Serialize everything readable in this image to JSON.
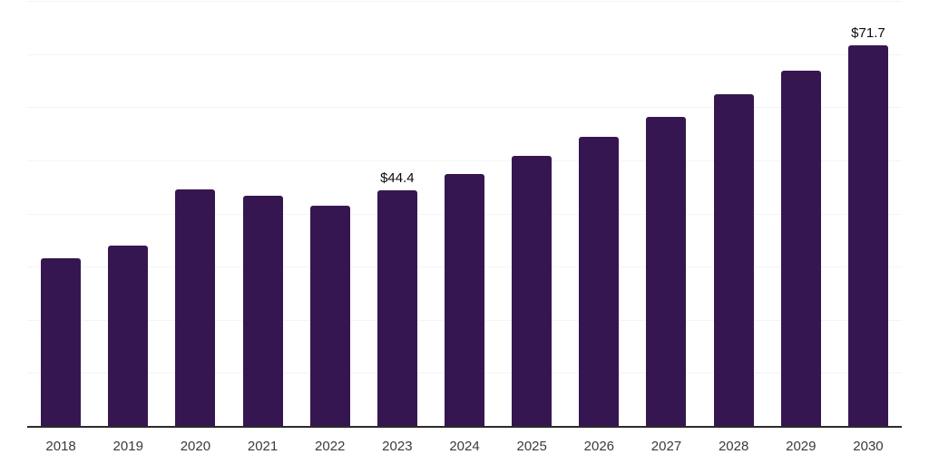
{
  "chart_data": {
    "type": "bar",
    "title": "",
    "xlabel": "",
    "ylabel": "",
    "categories": [
      "2018",
      "2019",
      "2020",
      "2021",
      "2022",
      "2023",
      "2024",
      "2025",
      "2026",
      "2027",
      "2028",
      "2029",
      "2030"
    ],
    "values": [
      31.5,
      33.9,
      44.6,
      43.3,
      41.4,
      44.4,
      47.5,
      50.9,
      54.4,
      58.2,
      62.4,
      66.9,
      71.7
    ],
    "data_labels": [
      "",
      "",
      "",
      "",
      "",
      "$44.4",
      "",
      "",
      "",
      "",
      "",
      "",
      "$71.7"
    ],
    "ylim": [
      0,
      80
    ],
    "gridline_step": 10,
    "grid": "horizontal",
    "legend": "none"
  },
  "colors": {
    "bar": "#361650",
    "axis": "#2b2b2b",
    "gridline": "#f4f4f4",
    "data_label": "#0b0b0b",
    "tick_label": "#3a3a3a",
    "background": "#ffffff"
  }
}
